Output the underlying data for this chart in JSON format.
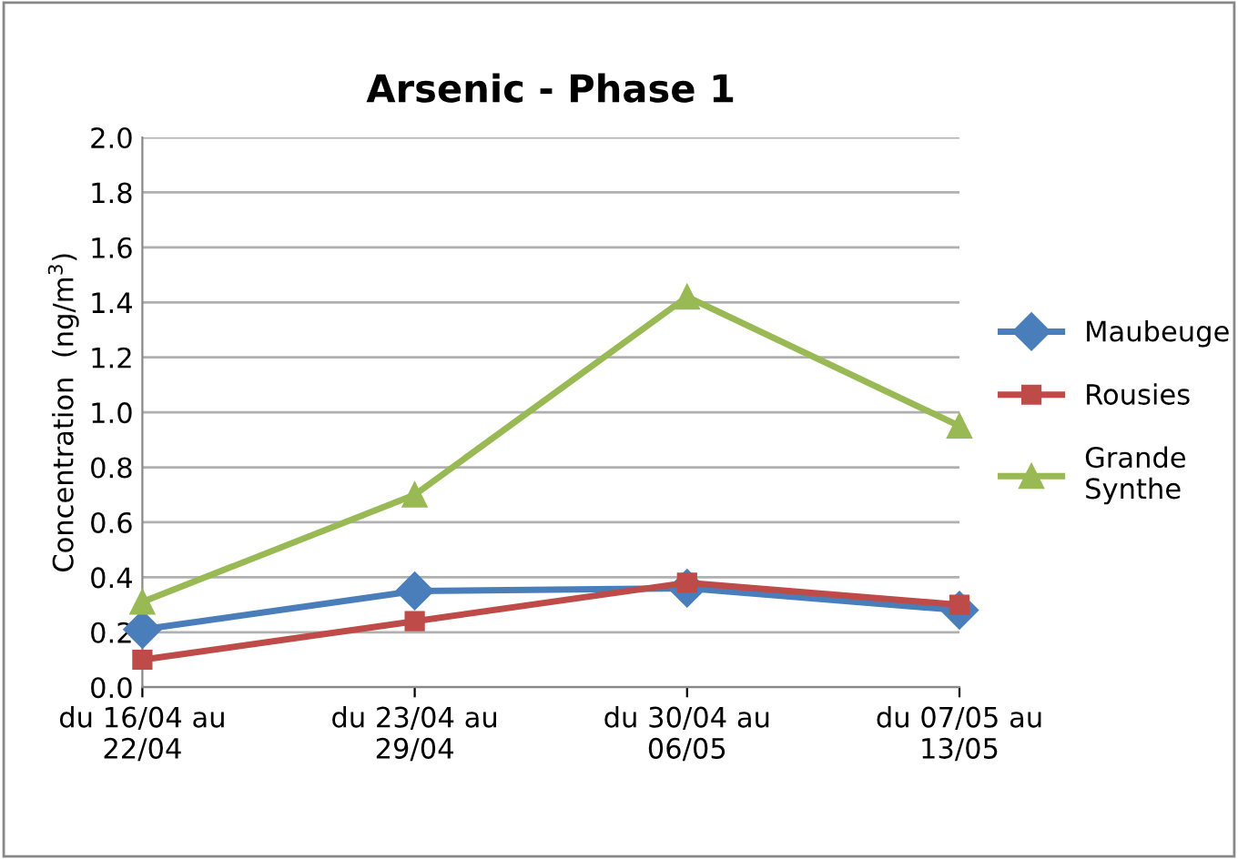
{
  "chart_data": {
    "type": "line",
    "title": "Arsenic - Phase 1",
    "ylabel": "Concentration  (ng/m$^{3}$)",
    "categories": [
      "du 16/04 au\n22/04",
      "du 23/04 au\n29/04",
      "du 30/04 au\n06/05",
      "du 07/05 au\n13/05"
    ],
    "series": [
      {
        "name": "Maubeuge",
        "color": "#4a7ebb",
        "marker": "diamond",
        "values": [
          0.21,
          0.35,
          0.36,
          0.28
        ]
      },
      {
        "name": "Rousies",
        "color": "#be4b48",
        "marker": "square",
        "values": [
          0.1,
          0.24,
          0.38,
          0.3
        ]
      },
      {
        "name": "Grande\nSynthe",
        "color": "#98b954",
        "marker": "triangle",
        "values": [
          0.31,
          0.7,
          1.42,
          0.95
        ]
      }
    ],
    "ylim": [
      0,
      2.0
    ],
    "yticks": [
      {
        "value": 0,
        "label": "0.0"
      },
      {
        "value": 0.2,
        "label": "0.2"
      },
      {
        "value": 0.4,
        "label": "0.4"
      },
      {
        "value": 0.6,
        "label": "0.6"
      },
      {
        "value": 0.8,
        "label": "0.8"
      },
      {
        "value": 1.0,
        "label": "1.0"
      },
      {
        "value": 1.2,
        "label": "1.2"
      },
      {
        "value": 1.4,
        "label": "1.4"
      },
      {
        "value": 1.6,
        "label": "1.6"
      },
      {
        "value": 1.8,
        "label": "1.8"
      },
      {
        "value": 2.0,
        "label": "2.0"
      }
    ],
    "grid": "y",
    "legend": "right"
  }
}
